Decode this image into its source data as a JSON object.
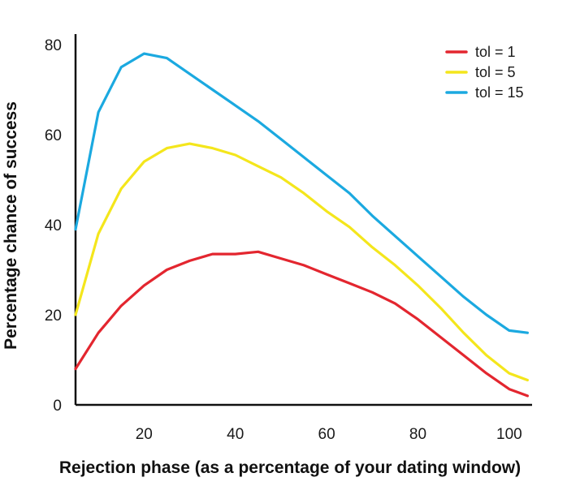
{
  "chart_data": {
    "type": "line",
    "title": "",
    "xlabel": "Rejection phase (as a percentage of your dating window)",
    "ylabel": "Percentage chance of success",
    "xlim": [
      5,
      105
    ],
    "ylim": [
      0,
      80
    ],
    "x_ticks": [
      20,
      40,
      60,
      80,
      100
    ],
    "y_ticks": [
      0,
      20,
      40,
      60,
      80
    ],
    "grid": false,
    "legend_position": "top-right",
    "x": [
      5,
      10,
      15,
      20,
      25,
      30,
      35,
      40,
      45,
      50,
      55,
      60,
      65,
      70,
      75,
      80,
      85,
      90,
      95,
      100,
      104
    ],
    "series": [
      {
        "name": "tol = 1",
        "color": "#e3262f",
        "values": [
          8,
          16,
          22,
          26.5,
          30,
          32,
          33.5,
          33.5,
          34,
          32.5,
          31,
          29,
          27,
          25,
          22.5,
          19,
          15,
          11,
          7,
          3.5,
          2
        ]
      },
      {
        "name": "tol = 5",
        "color": "#f4e61c",
        "values": [
          20,
          38,
          48,
          54,
          57,
          58,
          57,
          55.5,
          53,
          50.5,
          47,
          43,
          39.5,
          35,
          31,
          26.5,
          21.5,
          16,
          11,
          7,
          5.5
        ]
      },
      {
        "name": "tol = 15",
        "color": "#1ba9e0",
        "values": [
          39,
          65,
          75,
          78,
          77,
          73.5,
          70,
          66.5,
          63,
          59,
          55,
          51,
          47,
          42,
          37.5,
          33,
          28.5,
          24,
          20,
          16.5,
          16
        ]
      }
    ]
  }
}
